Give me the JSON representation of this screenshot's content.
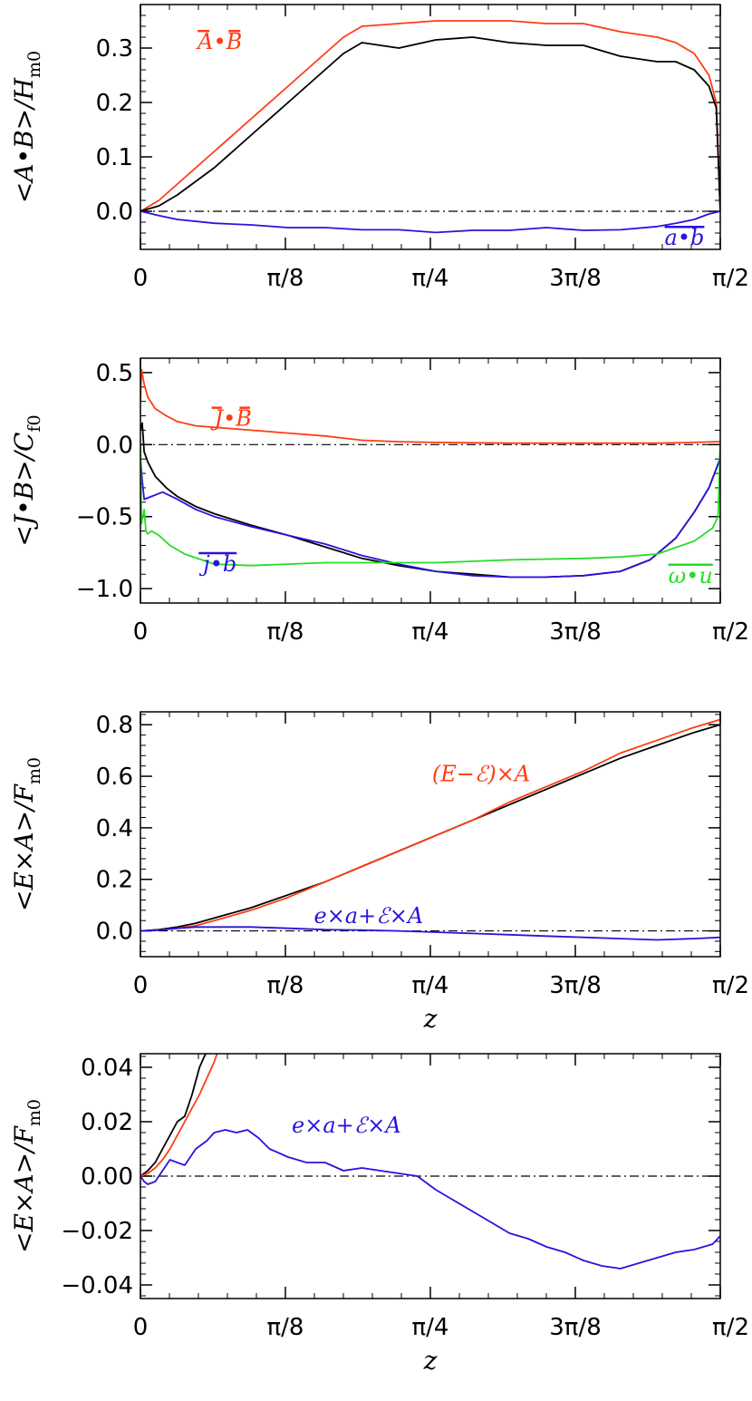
{
  "colors": {
    "red": "#ff3c14",
    "blue": "#2814dc",
    "green": "#28dc28",
    "black": "#000000"
  },
  "chart_data": [
    {
      "type": "line",
      "ylabel": "<A•B>/H_m0",
      "xlabel": "",
      "xlim": [
        0,
        1.5708
      ],
      "ylim": [
        -0.07,
        0.38
      ],
      "xticks": [
        0,
        0.3927,
        0.7854,
        1.1781,
        1.5708
      ],
      "xtick_labels": [
        "0",
        "π/8",
        "π/4",
        "3π/8",
        "π/2"
      ],
      "yticks": [
        0.0,
        0.1,
        0.2,
        0.3
      ],
      "ytick_labels": [
        "0.0",
        "0.1",
        "0.2",
        "0.3"
      ],
      "zero_line": true,
      "series": [
        {
          "color": "red",
          "x": [
            0,
            0.05,
            0.1,
            0.2,
            0.3,
            0.4,
            0.5,
            0.55,
            0.6,
            0.7,
            0.8,
            0.9,
            1.0,
            1.1,
            1.2,
            1.3,
            1.4,
            1.45,
            1.5,
            1.54,
            1.56,
            1.5708
          ],
          "y": [
            0,
            0.02,
            0.05,
            0.11,
            0.17,
            0.23,
            0.29,
            0.32,
            0.34,
            0.345,
            0.35,
            0.35,
            0.35,
            0.345,
            0.345,
            0.33,
            0.32,
            0.31,
            0.29,
            0.25,
            0.2,
            0
          ]
        },
        {
          "color": "black",
          "x": [
            0,
            0.05,
            0.1,
            0.2,
            0.3,
            0.4,
            0.5,
            0.55,
            0.6,
            0.7,
            0.8,
            0.9,
            1.0,
            1.1,
            1.2,
            1.3,
            1.4,
            1.45,
            1.5,
            1.54,
            1.56,
            1.5708
          ],
          "y": [
            0,
            0.01,
            0.03,
            0.08,
            0.14,
            0.2,
            0.26,
            0.29,
            0.31,
            0.3,
            0.315,
            0.32,
            0.31,
            0.305,
            0.305,
            0.285,
            0.275,
            0.275,
            0.26,
            0.23,
            0.19,
            0
          ]
        },
        {
          "color": "blue",
          "x": [
            0,
            0.05,
            0.1,
            0.2,
            0.3,
            0.4,
            0.5,
            0.6,
            0.7,
            0.8,
            0.9,
            1.0,
            1.1,
            1.2,
            1.3,
            1.4,
            1.45,
            1.5,
            1.54,
            1.5708
          ],
          "y": [
            0,
            -0.008,
            -0.015,
            -0.022,
            -0.025,
            -0.03,
            -0.03,
            -0.034,
            -0.034,
            -0.039,
            -0.035,
            -0.035,
            -0.03,
            -0.035,
            -0.034,
            -0.028,
            -0.022,
            -0.015,
            -0.005,
            0
          ]
        }
      ],
      "annotations": [
        {
          "text": "A•B",
          "x": 0.155,
          "y": 0.298,
          "color": "red",
          "overline": "split"
        },
        {
          "text": "a•b",
          "x": 1.42,
          "y": -0.062,
          "color": "blue",
          "overline": "full"
        }
      ]
    },
    {
      "type": "line",
      "ylabel": "<J•B>/C_f0",
      "xlabel": "",
      "xlim": [
        0,
        1.5708
      ],
      "ylim": [
        -1.1,
        0.6
      ],
      "xticks": [
        0,
        0.3927,
        0.7854,
        1.1781,
        1.5708
      ],
      "xtick_labels": [
        "0",
        "π/8",
        "π/4",
        "3π/8",
        "π/2"
      ],
      "yticks": [
        -1.0,
        -0.5,
        0.0,
        0.5
      ],
      "ytick_labels": [
        "−1.0",
        "−0.5",
        "0.0",
        "0.5"
      ],
      "zero_line": true,
      "series": [
        {
          "color": "red",
          "x": [
            0,
            0.003,
            0.01,
            0.02,
            0.04,
            0.07,
            0.1,
            0.15,
            0.2,
            0.3,
            0.4,
            0.5,
            0.6,
            0.7,
            0.8,
            1.0,
            1.2,
            1.4,
            1.5,
            1.56,
            1.5708
          ],
          "y": [
            0.3,
            0.52,
            0.42,
            0.33,
            0.25,
            0.2,
            0.16,
            0.13,
            0.12,
            0.1,
            0.08,
            0.06,
            0.03,
            0.02,
            0.015,
            0.01,
            0.01,
            0.01,
            0.015,
            0.02,
            0.02
          ]
        },
        {
          "color": "black",
          "x": [
            0,
            0.005,
            0.01,
            0.02,
            0.04,
            0.07,
            0.1,
            0.15,
            0.2,
            0.3,
            0.4,
            0.5,
            0.6,
            0.7,
            0.8,
            0.9,
            1.0,
            1.1,
            1.2,
            1.3,
            1.38,
            1.45,
            1.5,
            1.54,
            1.57,
            1.5708
          ],
          "y": [
            0.1,
            0.15,
            -0.05,
            -0.12,
            -0.22,
            -0.3,
            -0.36,
            -0.43,
            -0.48,
            -0.56,
            -0.63,
            -0.71,
            -0.79,
            -0.84,
            -0.88,
            -0.9,
            -0.92,
            -0.92,
            -0.91,
            -0.88,
            -0.8,
            -0.65,
            -0.47,
            -0.3,
            -0.1,
            0
          ]
        },
        {
          "color": "blue",
          "x": [
            0,
            0.005,
            0.01,
            0.03,
            0.06,
            0.1,
            0.15,
            0.2,
            0.3,
            0.4,
            0.5,
            0.6,
            0.7,
            0.8,
            0.9,
            1.0,
            1.1,
            1.2,
            1.3,
            1.38,
            1.45,
            1.5,
            1.54,
            1.57,
            1.5708
          ],
          "y": [
            -0.1,
            -0.25,
            -0.38,
            -0.36,
            -0.33,
            -0.38,
            -0.45,
            -0.5,
            -0.57,
            -0.63,
            -0.69,
            -0.77,
            -0.83,
            -0.88,
            -0.91,
            -0.92,
            -0.92,
            -0.91,
            -0.88,
            -0.8,
            -0.65,
            -0.47,
            -0.3,
            -0.1,
            0
          ]
        },
        {
          "color": "green",
          "x": [
            0,
            0.003,
            0.01,
            0.015,
            0.02,
            0.03,
            0.05,
            0.08,
            0.12,
            0.2,
            0.3,
            0.4,
            0.5,
            0.6,
            0.8,
            1.0,
            1.2,
            1.3,
            1.4,
            1.5,
            1.55,
            1.565,
            1.5708
          ],
          "y": [
            0,
            -0.55,
            -0.45,
            -0.6,
            -0.62,
            -0.6,
            -0.63,
            -0.7,
            -0.76,
            -0.83,
            -0.84,
            -0.83,
            -0.82,
            -0.82,
            -0.82,
            -0.8,
            -0.79,
            -0.78,
            -0.76,
            -0.67,
            -0.58,
            -0.5,
            0
          ]
        }
      ],
      "annotations": [
        {
          "text": "J•B",
          "x": 0.2,
          "y": 0.13,
          "color": "red",
          "overline": "split"
        },
        {
          "text": "j•b",
          "x": 0.17,
          "y": -0.88,
          "color": "blue",
          "overline": "full"
        },
        {
          "text": "ω•u",
          "x": 1.43,
          "y": -0.96,
          "color": "green",
          "overline": "full"
        }
      ]
    },
    {
      "type": "line",
      "ylabel": "<E×A>/F_m0",
      "xlabel": "z",
      "xlim": [
        0,
        1.5708
      ],
      "ylim": [
        -0.1,
        0.85
      ],
      "xticks": [
        0,
        0.3927,
        0.7854,
        1.1781,
        1.5708
      ],
      "xtick_labels": [
        "0",
        "π/8",
        "π/4",
        "3π/8",
        "π/2"
      ],
      "yticks": [
        0.0,
        0.2,
        0.4,
        0.6,
        0.8
      ],
      "ytick_labels": [
        "0.0",
        "0.2",
        "0.4",
        "0.6",
        "0.8"
      ],
      "zero_line": true,
      "series": [
        {
          "color": "black",
          "x": [
            0,
            0.05,
            0.1,
            0.15,
            0.2,
            0.3,
            0.4,
            0.5,
            0.6,
            0.7,
            0.8,
            0.9,
            1.0,
            1.1,
            1.2,
            1.3,
            1.4,
            1.5,
            1.5708
          ],
          "y": [
            0,
            0.005,
            0.015,
            0.03,
            0.05,
            0.09,
            0.14,
            0.19,
            0.25,
            0.31,
            0.37,
            0.43,
            0.49,
            0.55,
            0.61,
            0.67,
            0.72,
            0.77,
            0.8
          ]
        },
        {
          "color": "red",
          "x": [
            0,
            0.05,
            0.1,
            0.15,
            0.2,
            0.3,
            0.4,
            0.5,
            0.6,
            0.7,
            0.8,
            0.9,
            1.0,
            1.1,
            1.2,
            1.3,
            1.4,
            1.5,
            1.5708
          ],
          "y": [
            0,
            0.003,
            0.01,
            0.02,
            0.04,
            0.08,
            0.13,
            0.19,
            0.25,
            0.31,
            0.37,
            0.43,
            0.5,
            0.56,
            0.62,
            0.69,
            0.74,
            0.79,
            0.82
          ]
        },
        {
          "color": "blue",
          "x": [
            0,
            0.05,
            0.1,
            0.15,
            0.2,
            0.3,
            0.4,
            0.5,
            0.6,
            0.7,
            0.8,
            0.9,
            1.0,
            1.1,
            1.2,
            1.3,
            1.4,
            1.5,
            1.5708
          ],
          "y": [
            0,
            0.003,
            0.01,
            0.015,
            0.015,
            0.015,
            0.01,
            0.005,
            0.003,
            0,
            -0.005,
            -0.01,
            -0.015,
            -0.02,
            -0.025,
            -0.03,
            -0.035,
            -0.03,
            -0.025
          ]
        }
      ],
      "annotations": [
        {
          "text": "(E−ℰ)×A",
          "x": 0.79,
          "y": 0.58,
          "color": "red",
          "overline": "none"
        },
        {
          "text": "e×a+ℰ×A",
          "x": 0.47,
          "y": 0.03,
          "color": "blue",
          "overline": "none"
        }
      ]
    },
    {
      "type": "line",
      "ylabel": "<E×A>/F_m0",
      "xlabel": "z",
      "xlim": [
        0,
        1.5708
      ],
      "ylim": [
        -0.045,
        0.045
      ],
      "xticks": [
        0,
        0.3927,
        0.7854,
        1.1781,
        1.5708
      ],
      "xtick_labels": [
        "0",
        "π/8",
        "π/4",
        "3π/8",
        "π/2"
      ],
      "yticks": [
        -0.04,
        -0.02,
        0.0,
        0.02,
        0.04
      ],
      "ytick_labels": [
        "−0.04",
        "−0.02",
        "0.00",
        "0.02",
        "0.04"
      ],
      "zero_line": true,
      "series": [
        {
          "color": "black",
          "x": [
            0,
            0.02,
            0.04,
            0.06,
            0.08,
            0.1,
            0.12,
            0.14,
            0.16,
            0.18,
            0.2
          ],
          "y": [
            0,
            0.002,
            0.005,
            0.01,
            0.015,
            0.02,
            0.022,
            0.03,
            0.04,
            0.046,
            0.05
          ]
        },
        {
          "color": "red",
          "x": [
            0,
            0.02,
            0.04,
            0.06,
            0.08,
            0.1,
            0.12,
            0.14,
            0.16,
            0.18,
            0.2,
            0.22
          ],
          "y": [
            0,
            0.001,
            0.003,
            0.006,
            0.01,
            0.015,
            0.02,
            0.025,
            0.03,
            0.036,
            0.042,
            0.05
          ]
        },
        {
          "color": "blue",
          "x": [
            0,
            0.01,
            0.02,
            0.04,
            0.06,
            0.08,
            0.1,
            0.12,
            0.15,
            0.18,
            0.2,
            0.23,
            0.26,
            0.29,
            0.32,
            0.35,
            0.4,
            0.45,
            0.5,
            0.55,
            0.6,
            0.65,
            0.7,
            0.75,
            0.8,
            0.85,
            0.9,
            0.95,
            1.0,
            1.05,
            1.1,
            1.15,
            1.2,
            1.25,
            1.3,
            1.35,
            1.4,
            1.45,
            1.5,
            1.55,
            1.5708
          ],
          "y": [
            0,
            -0.002,
            -0.003,
            -0.002,
            0.002,
            0.006,
            0.005,
            0.004,
            0.01,
            0.013,
            0.016,
            0.017,
            0.016,
            0.017,
            0.014,
            0.01,
            0.007,
            0.005,
            0.005,
            0.002,
            0.003,
            0.002,
            0.001,
            0.0,
            -0.005,
            -0.009,
            -0.013,
            -0.017,
            -0.021,
            -0.023,
            -0.026,
            -0.028,
            -0.031,
            -0.033,
            -0.034,
            -0.032,
            -0.03,
            -0.028,
            -0.027,
            -0.025,
            -0.022
          ]
        }
      ],
      "annotations": [
        {
          "text": "e×a+ℰ×A",
          "x": 0.41,
          "y": 0.016,
          "color": "blue",
          "overline": "none"
        }
      ]
    }
  ]
}
